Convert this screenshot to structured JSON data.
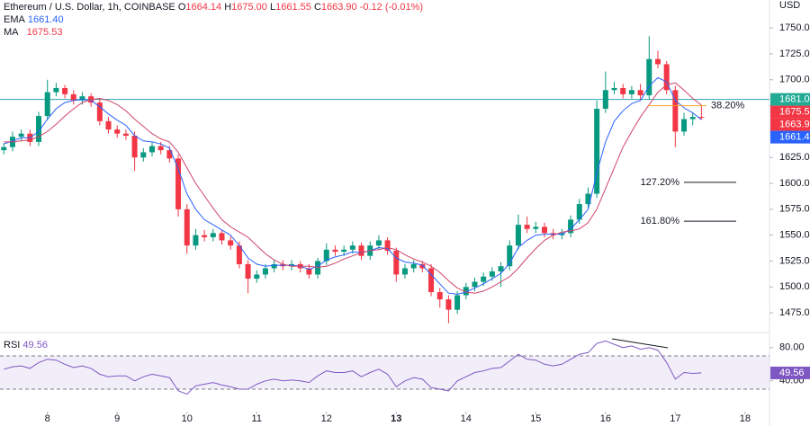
{
  "header": {
    "title": "Ethereum / U.S. Dollar, 1h, COINBASE",
    "open_label": "O",
    "open": "1664.14",
    "high_label": "H",
    "high": "1675.00",
    "low_label": "L",
    "low": "1661.55",
    "close_label": "C",
    "close": "1663.90",
    "change": "-0.12 (-0.01%)",
    "ema_label": "EMA",
    "ema": "1661.40",
    "ma_label": "MA",
    "ma": "1675.53",
    "currency": "USD",
    "rsi_label": "RSI",
    "rsi": "49.56"
  },
  "chart_data": {
    "type": "candlestick",
    "x": [
      7.375,
      7.5,
      7.625,
      7.75,
      7.875,
      8,
      8.125,
      8.25,
      8.375,
      8.5,
      8.625,
      8.75,
      8.875,
      9,
      9.125,
      9.25,
      9.375,
      9.5,
      9.625,
      9.75,
      9.875,
      10,
      10.125,
      10.25,
      10.375,
      10.5,
      10.625,
      10.75,
      10.875,
      11,
      11.125,
      11.25,
      11.375,
      11.5,
      11.625,
      11.75,
      11.875,
      12,
      12.125,
      12.25,
      12.375,
      12.5,
      12.625,
      12.75,
      12.875,
      13,
      13.125,
      13.25,
      13.375,
      13.5,
      13.625,
      13.75,
      13.875,
      14,
      14.125,
      14.25,
      14.375,
      14.5,
      14.625,
      14.75,
      14.875,
      15,
      15.125,
      15.25,
      15.375,
      15.5,
      15.625,
      15.75,
      15.875,
      16,
      16.125,
      16.25,
      16.375,
      16.5,
      16.625,
      16.75,
      16.875,
      17,
      17.125,
      17.25,
      17.375
    ],
    "open": [
      1632,
      1635,
      1645,
      1648,
      1640,
      1665,
      1688,
      1692,
      1686,
      1680,
      1684,
      1678,
      1660,
      1652,
      1648,
      1646,
      1625,
      1630,
      1636,
      1632,
      1624,
      1575,
      1540,
      1550,
      1548,
      1552,
      1545,
      1540,
      1522,
      1508,
      1512,
      1518,
      1522,
      1520,
      1522,
      1518,
      1512,
      1525,
      1536,
      1534,
      1536,
      1540,
      1530,
      1540,
      1545,
      1535,
      1512,
      1518,
      1522,
      1518,
      1495,
      1488,
      1478,
      1492,
      1500,
      1505,
      1510,
      1515,
      1520,
      1540,
      1560,
      1556,
      1558,
      1552,
      1550,
      1552,
      1565,
      1580,
      1590,
      1672,
      1690,
      1692,
      1686,
      1690,
      1685,
      1720,
      1715,
      1690,
      1650,
      1662,
      1664.14
    ],
    "high": [
      1639,
      1650,
      1652,
      1652,
      1669,
      1700,
      1697,
      1695,
      1690,
      1688,
      1687,
      1682,
      1664,
      1656,
      1652,
      1650,
      1634,
      1640,
      1640,
      1636,
      1628,
      1580,
      1556,
      1555,
      1556,
      1555,
      1549,
      1544,
      1526,
      1516,
      1522,
      1526,
      1526,
      1526,
      1525,
      1522,
      1528,
      1542,
      1540,
      1540,
      1544,
      1543,
      1544,
      1550,
      1548,
      1538,
      1522,
      1526,
      1525,
      1522,
      1499,
      1492,
      1496,
      1504,
      1509,
      1514,
      1519,
      1524,
      1545,
      1570,
      1568,
      1563,
      1562,
      1556,
      1556,
      1569,
      1585,
      1596,
      1680,
      1708,
      1698,
      1696,
      1694,
      1696,
      1742,
      1728,
      1718,
      1694,
      1668,
      1668,
      1675
    ],
    "low": [
      1628,
      1631,
      1641,
      1636,
      1636,
      1661,
      1684,
      1682,
      1676,
      1676,
      1674,
      1656,
      1648,
      1644,
      1642,
      1612,
      1621,
      1626,
      1628,
      1620,
      1568,
      1532,
      1536,
      1544,
      1544,
      1541,
      1536,
      1518,
      1494,
      1504,
      1508,
      1514,
      1516,
      1516,
      1514,
      1508,
      1508,
      1521,
      1530,
      1530,
      1532,
      1526,
      1526,
      1536,
      1531,
      1505,
      1508,
      1514,
      1514,
      1491,
      1480,
      1465,
      1474,
      1488,
      1496,
      1501,
      1506,
      1500,
      1516,
      1536,
      1552,
      1552,
      1548,
      1546,
      1546,
      1548,
      1561,
      1576,
      1586,
      1668,
      1686,
      1682,
      1682,
      1681,
      1681,
      1711,
      1686,
      1635,
      1646,
      1656,
      1661.55
    ],
    "close": [
      1635,
      1645,
      1648,
      1640,
      1665,
      1688,
      1692,
      1686,
      1680,
      1684,
      1678,
      1660,
      1652,
      1648,
      1646,
      1625,
      1630,
      1636,
      1632,
      1624,
      1575,
      1540,
      1550,
      1548,
      1552,
      1545,
      1540,
      1522,
      1508,
      1512,
      1518,
      1522,
      1520,
      1522,
      1518,
      1512,
      1525,
      1536,
      1534,
      1536,
      1540,
      1530,
      1540,
      1545,
      1535,
      1512,
      1518,
      1522,
      1518,
      1495,
      1488,
      1478,
      1492,
      1500,
      1505,
      1510,
      1515,
      1520,
      1540,
      1560,
      1556,
      1558,
      1552,
      1550,
      1552,
      1565,
      1580,
      1590,
      1672,
      1690,
      1692,
      1686,
      1690,
      1685,
      1720,
      1715,
      1690,
      1650,
      1662,
      1664.14,
      1663.9
    ],
    "up_color": "#089981",
    "down_color": "#f23645",
    "xlim": [
      7.32,
      18.35
    ],
    "xticks": [
      8,
      9,
      10,
      11,
      12,
      13,
      14,
      15,
      16,
      17,
      18
    ],
    "bold_xtick": 13,
    "ylim": [
      1456,
      1777
    ],
    "yticks": [
      {
        "value": 1475,
        "label": "1475.00"
      },
      {
        "value": 1500,
        "label": "1500.00"
      },
      {
        "value": 1525,
        "label": "1525.00"
      },
      {
        "value": 1550,
        "label": "1550.00"
      },
      {
        "value": 1575,
        "label": "1575.00"
      },
      {
        "value": 1600,
        "label": "1600.00"
      },
      {
        "value": 1625,
        "label": "1625.00"
      },
      {
        "value": 1650,
        "label": "1650.00"
      },
      {
        "value": 1675,
        "label": "1675.00"
      },
      {
        "value": 1700,
        "label": "1700.00"
      },
      {
        "value": 1725,
        "label": "1725.00"
      },
      {
        "value": 1750,
        "label": "1750.00"
      }
    ],
    "overlays": [
      {
        "name": "EMA",
        "color": "#2962ff",
        "values": [
          1638,
          1641,
          1644,
          1644,
          1650,
          1662,
          1672,
          1678,
          1680,
          1681,
          1680,
          1674,
          1667,
          1661,
          1656,
          1646,
          1641,
          1640,
          1638,
          1634,
          1614,
          1590,
          1575,
          1565,
          1560,
          1555,
          1550,
          1540,
          1528,
          1522,
          1520,
          1521,
          1521,
          1521,
          1520,
          1517,
          1520,
          1526,
          1529,
          1531,
          1534,
          1533,
          1535,
          1538,
          1537,
          1528,
          1524,
          1523,
          1521,
          1512,
          1503,
          1494,
          1493,
          1495,
          1499,
          1503,
          1508,
          1513,
          1523,
          1538,
          1545,
          1550,
          1551,
          1551,
          1551,
          1556,
          1565,
          1575,
          1610,
          1640,
          1660,
          1670,
          1677,
          1680,
          1694,
          1702,
          1698,
          1680,
          1673,
          1668,
          1661.4
        ]
      },
      {
        "name": "MA",
        "color": "#d04468",
        "values": [
          1640,
          1640,
          1641,
          1642,
          1645,
          1650,
          1657,
          1665,
          1672,
          1678,
          1681,
          1682,
          1680,
          1676,
          1670,
          1662,
          1655,
          1648,
          1643,
          1640,
          1630,
          1615,
          1600,
          1588,
          1576,
          1565,
          1558,
          1553,
          1548,
          1540,
          1532,
          1526,
          1522,
          1520,
          1520,
          1520,
          1519,
          1520,
          1523,
          1527,
          1530,
          1533,
          1535,
          1536,
          1538,
          1536,
          1531,
          1527,
          1524,
          1520,
          1514,
          1506,
          1499,
          1495,
          1494,
          1496,
          1500,
          1505,
          1510,
          1518,
          1528,
          1537,
          1545,
          1550,
          1553,
          1554,
          1556,
          1562,
          1575,
          1595,
          1615,
          1635,
          1650,
          1664,
          1676,
          1688,
          1695,
          1697,
          1690,
          1682,
          1675.53
        ]
      }
    ],
    "level": {
      "value": 1681.04,
      "color": "#2fa5b8"
    },
    "price_tags": [
      {
        "value": 1681.04,
        "label": "1681.04",
        "color": "#22ab94"
      },
      {
        "value": 1675.53,
        "label": "1675.53",
        "color": "#f23645"
      },
      {
        "value": 1663.9,
        "label": "1663.90",
        "color": "#f23645"
      },
      {
        "value": 1661.4,
        "label": "1661.40",
        "color": "#2962ff"
      }
    ],
    "fib_levels": [
      {
        "value": 1675,
        "label": "38.20%",
        "color": "#f5a623"
      },
      {
        "value": 1601,
        "label": "127.20%",
        "color": "#131722"
      },
      {
        "value": 1563.5,
        "label": "161.80%",
        "color": "#131722"
      }
    ],
    "rsi": {
      "color": "#7e57c2",
      "ylim": [
        3,
        96
      ],
      "yticks": [
        {
          "value": 80,
          "label": "80.00"
        },
        {
          "value": 40,
          "label": "40.00"
        }
      ],
      "band": [
        30,
        70
      ],
      "last": {
        "value": 49.56,
        "label": "49.56"
      },
      "values": [
        54,
        57,
        58,
        55,
        62,
        66,
        65,
        60,
        56,
        58,
        55,
        48,
        45,
        46,
        46,
        40,
        45,
        48,
        46,
        44,
        28,
        24,
        34,
        36,
        38,
        35,
        33,
        30,
        30,
        36,
        40,
        42,
        40,
        41,
        40,
        38,
        46,
        52,
        50,
        50,
        52,
        45,
        50,
        54,
        48,
        33,
        40,
        44,
        42,
        32,
        30,
        28,
        40,
        45,
        50,
        52,
        55,
        56,
        64,
        72,
        66,
        65,
        60,
        58,
        60,
        66,
        72,
        74,
        85,
        88,
        84,
        80,
        82,
        78,
        80,
        77,
        62,
        42,
        50,
        49,
        49.56
      ]
    }
  }
}
